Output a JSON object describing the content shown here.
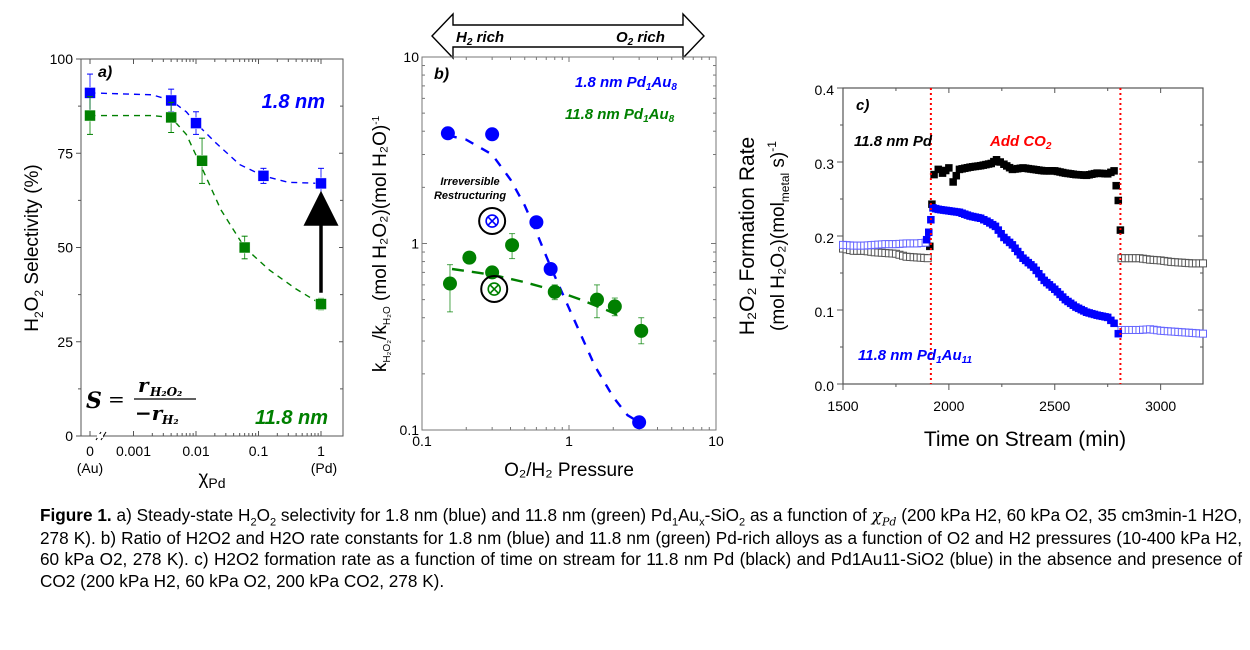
{
  "chart_data": [
    {
      "type": "scatter",
      "panel_label": "a)",
      "ylabel": "H2O2 Selectivity (%)",
      "xlabel": "χPd",
      "xscale": "log (broken axis; 0 placed left of break)",
      "ylim": [
        0,
        100
      ],
      "yticks": [
        0,
        25,
        50,
        75,
        100
      ],
      "xtick_labels": [
        "0",
        "0.001",
        "0.01",
        "0.1",
        "1"
      ],
      "xtick_sublabels": {
        "0": "(Au)",
        "1": "(Pd)"
      },
      "formula_label": "S = r_H2O2 / -r_H2",
      "series": [
        {
          "name": "1.8 nm",
          "color": "#0000ff",
          "marker": "square",
          "points": [
            {
              "x": 0,
              "y": 91,
              "err": 5
            },
            {
              "x": 0.004,
              "y": 89,
              "err": 3
            },
            {
              "x": 0.01,
              "y": 83,
              "err": 3
            },
            {
              "x": 0.12,
              "y": 69,
              "err": 2
            },
            {
              "x": 1,
              "y": 67,
              "err": 4
            }
          ],
          "fit": [
            [
              0,
              91
            ],
            [
              0.002,
              90.5
            ],
            [
              0.004,
              89
            ],
            [
              0.007,
              86
            ],
            [
              0.01,
              83
            ],
            [
              0.02,
              78
            ],
            [
              0.05,
              72
            ],
            [
              0.12,
              69
            ],
            [
              0.3,
              67.3
            ],
            [
              1,
              67
            ]
          ]
        },
        {
          "name": "11.8 nm",
          "color": "#008000",
          "marker": "square",
          "points": [
            {
              "x": 0,
              "y": 85,
              "err": 5
            },
            {
              "x": 0.004,
              "y": 84.5,
              "err": 4
            },
            {
              "x": 0.0125,
              "y": 73,
              "err": 6
            },
            {
              "x": 0.06,
              "y": 50,
              "err": 3
            },
            {
              "x": 1,
              "y": 35,
              "err": 1.5
            }
          ],
          "fit": [
            [
              0,
              85
            ],
            [
              0.002,
              85
            ],
            [
              0.004,
              84.5
            ],
            [
              0.007,
              80
            ],
            [
              0.0125,
              71
            ],
            [
              0.025,
              60
            ],
            [
              0.06,
              50
            ],
            [
              0.15,
              44
            ],
            [
              0.4,
              39
            ],
            [
              1,
              35
            ]
          ]
        }
      ],
      "annotations": [
        {
          "text": "1.8 nm",
          "color": "#0000ff"
        },
        {
          "text": "11.8 nm",
          "color": "#008000"
        },
        {
          "type": "arrow",
          "from": {
            "x": 1,
            "y": 38
          },
          "to": {
            "x": 1,
            "y": 62
          },
          "color": "#000000"
        }
      ]
    },
    {
      "type": "scatter",
      "panel_label": "b)",
      "ylabel": "kH2O2/kH2O (mol H2O2)(mol H2O)-1",
      "xlabel": "O2/H2 Pressure",
      "xscale": "log",
      "yscale": "log",
      "xlim": [
        0.1,
        10
      ],
      "ylim": [
        0.1,
        10
      ],
      "xtick_labels": [
        "0.1",
        "1",
        "10"
      ],
      "ytick_labels": [
        "0.1",
        "1",
        "10"
      ],
      "top_arrow": {
        "left": "H2 rich",
        "right": "O2 rich"
      },
      "series": [
        {
          "name": "1.8 nm Pd1Au8",
          "color": "#0000ff",
          "marker": "circle",
          "points": [
            {
              "x": 0.15,
              "y": 3.9
            },
            {
              "x": 0.3,
              "y": 3.85
            },
            {
              "x": 0.6,
              "y": 1.3
            },
            {
              "x": 0.75,
              "y": 0.73
            },
            {
              "x": 3.0,
              "y": 0.11
            }
          ],
          "fit": [
            [
              0.15,
              3.8
            ],
            [
              0.2,
              3.6
            ],
            [
              0.3,
              3.0
            ],
            [
              0.4,
              2.2
            ],
            [
              0.5,
              1.6
            ],
            [
              0.6,
              1.15
            ],
            [
              0.75,
              0.75
            ],
            [
              1,
              0.45
            ],
            [
              1.5,
              0.22
            ],
            [
              2,
              0.15
            ],
            [
              2.5,
              0.12
            ],
            [
              3,
              0.11
            ]
          ]
        },
        {
          "name": "11.8 nm Pd1Au8",
          "color": "#008000",
          "marker": "circle",
          "points": [
            {
              "x": 0.155,
              "y": 0.61,
              "err_lo": 0.18,
              "err_hi": 0.16
            },
            {
              "x": 0.21,
              "y": 0.84,
              "err_lo": 0.06,
              "err_hi": 0.05
            },
            {
              "x": 0.3,
              "y": 0.7,
              "err_lo": 0.05,
              "err_hi": 0.05
            },
            {
              "x": 0.41,
              "y": 0.98,
              "err_lo": 0.15,
              "err_hi": 0.15
            },
            {
              "x": 0.8,
              "y": 0.55,
              "err_lo": 0.05,
              "err_hi": 0.05
            },
            {
              "x": 1.55,
              "y": 0.5,
              "err_lo": 0.1,
              "err_hi": 0.1
            },
            {
              "x": 2.05,
              "y": 0.46,
              "err_lo": 0.05,
              "err_hi": 0.05
            },
            {
              "x": 3.1,
              "y": 0.34,
              "err_lo": 0.05,
              "err_hi": 0.06
            }
          ],
          "fit": [
            [
              0.16,
              0.73
            ],
            [
              0.3,
              0.68
            ],
            [
              0.5,
              0.62
            ],
            [
              0.8,
              0.56
            ],
            [
              1.2,
              0.5
            ],
            [
              1.8,
              0.44
            ],
            [
              2.2,
              0.41
            ]
          ]
        },
        {
          "name": "Irreversible Restructuring",
          "marker": "crossed-circle",
          "points": [
            {
              "x": 0.3,
              "y": 1.32,
              "color": "#0000ff"
            },
            {
              "x": 0.31,
              "y": 0.57,
              "color": "#008000"
            }
          ]
        }
      ],
      "annotations": [
        {
          "text": "1.8 nm Pd1Au8",
          "color": "#0000ff"
        },
        {
          "text": "11.8 nm Pd1Au8",
          "color": "#008000"
        },
        {
          "text": "Irreversible Restructuring",
          "color": "#000000"
        }
      ]
    },
    {
      "type": "scatter",
      "panel_label": "c)",
      "ylabel": "H2O2 Formation Rate (mol H2O2)(mol metal s)-1",
      "xlabel": "Time on Stream (min)",
      "xlim": [
        1500,
        3200
      ],
      "ylim": [
        0,
        0.4
      ],
      "xticks": [
        1500,
        2000,
        2500,
        3000
      ],
      "yticks": [
        0.0,
        0.1,
        0.2,
        0.3,
        0.4
      ],
      "vlines": [
        {
          "x": 1915,
          "color": "#ff0000"
        },
        {
          "x": 2810,
          "color": "#ff0000"
        }
      ],
      "series": [
        {
          "name": "11.8 nm Pd (no CO2)",
          "color": "#555555",
          "marker": "open-square",
          "segments": [
            [
              [
                1500,
                0.183
              ],
              [
                1550,
                0.18
              ],
              [
                1600,
                0.18
              ],
              [
                1650,
                0.178
              ],
              [
                1700,
                0.177
              ],
              [
                1750,
                0.176
              ],
              [
                1800,
                0.172
              ],
              [
                1850,
                0.171
              ],
              [
                1900,
                0.17
              ]
            ],
            [
              [
                2815,
                0.17
              ],
              [
                2900,
                0.17
              ],
              [
                2950,
                0.168
              ],
              [
                3000,
                0.167
              ],
              [
                3050,
                0.165
              ],
              [
                3100,
                0.164
              ],
              [
                3150,
                0.163
              ],
              [
                3200,
                0.163
              ]
            ]
          ]
        },
        {
          "name": "11.8 nm Pd (with CO2)",
          "color": "#000000",
          "marker": "filled-square",
          "segments": [
            [
              [
                1910,
                0.186
              ],
              [
                1920,
                0.243
              ],
              [
                1930,
                0.283
              ],
              [
                1950,
                0.29
              ],
              [
                1970,
                0.285
              ],
              [
                2000,
                0.292
              ],
              [
                2020,
                0.273
              ],
              [
                2050,
                0.29
              ],
              [
                2100,
                0.293
              ],
              [
                2150,
                0.295
              ],
              [
                2200,
                0.298
              ],
              [
                2225,
                0.303
              ],
              [
                2260,
                0.297
              ],
              [
                2300,
                0.29
              ],
              [
                2350,
                0.292
              ],
              [
                2400,
                0.29
              ],
              [
                2450,
                0.288
              ],
              [
                2500,
                0.288
              ],
              [
                2550,
                0.285
              ],
              [
                2600,
                0.283
              ],
              [
                2650,
                0.282
              ],
              [
                2700,
                0.285
              ],
              [
                2750,
                0.284
              ],
              [
                2780,
                0.288
              ],
              [
                2790,
                0.268
              ],
              [
                2800,
                0.248
              ],
              [
                2810,
                0.208
              ]
            ]
          ]
        },
        {
          "name": "11.8 nm Pd1Au11 (no CO2)",
          "color": "#6666ff",
          "marker": "open-square",
          "segments": [
            [
              [
                1500,
                0.188
              ],
              [
                1550,
                0.187
              ],
              [
                1600,
                0.187
              ],
              [
                1650,
                0.188
              ],
              [
                1700,
                0.189
              ],
              [
                1750,
                0.189
              ],
              [
                1800,
                0.19
              ],
              [
                1850,
                0.19
              ],
              [
                1890,
                0.191
              ]
            ],
            [
              [
                2815,
                0.073
              ],
              [
                2900,
                0.073
              ],
              [
                2950,
                0.074
              ],
              [
                3000,
                0.072
              ],
              [
                3050,
                0.071
              ],
              [
                3100,
                0.07
              ],
              [
                3150,
                0.069
              ],
              [
                3200,
                0.068
              ]
            ]
          ]
        },
        {
          "name": "11.8 nm Pd1Au11 (with CO2)",
          "color": "#0000ff",
          "marker": "filled-square",
          "segments": [
            [
              [
                1895,
                0.195
              ],
              [
                1905,
                0.205
              ],
              [
                1915,
                0.222
              ],
              [
                1925,
                0.238
              ],
              [
                1950,
                0.236
              ],
              [
                2000,
                0.234
              ],
              [
                2050,
                0.232
              ],
              [
                2100,
                0.227
              ],
              [
                2150,
                0.224
              ],
              [
                2180,
                0.22
              ],
              [
                2220,
                0.213
              ],
              [
                2260,
                0.198
              ],
              [
                2300,
                0.188
              ],
              [
                2350,
                0.17
              ],
              [
                2400,
                0.158
              ],
              [
                2450,
                0.14
              ],
              [
                2500,
                0.128
              ],
              [
                2550,
                0.114
              ],
              [
                2600,
                0.104
              ],
              [
                2650,
                0.097
              ],
              [
                2700,
                0.093
              ],
              [
                2750,
                0.09
              ],
              [
                2780,
                0.082
              ],
              [
                2800,
                0.068
              ]
            ]
          ]
        }
      ],
      "annotations": [
        {
          "text": "11.8 nm Pd",
          "color": "#000000"
        },
        {
          "text": "Add CO2",
          "color": "#ff0000"
        },
        {
          "text": "11.8 nm Pd1Au11",
          "color": "#0000ff"
        }
      ]
    }
  ],
  "labels": {
    "a_panel": "a)",
    "a_ytick": [
      "0",
      "25",
      "50",
      "75",
      "100"
    ],
    "a_xtick": [
      "0",
      "0.001",
      "0.01",
      "0.1",
      "1"
    ],
    "a_au": "(Au)",
    "a_pd": "(Pd)",
    "a_xlabel_chi": "χ",
    "a_xlabel_sub": "Pd",
    "a_ylabel_pre": "H",
    "a_ylabel_sub1": "2",
    "a_ylabel_mid": "O",
    "a_ylabel_sub2": "2",
    "a_ylabel_post": " Selectivity (%)",
    "a_lbl_blue": "1.8 nm",
    "a_lbl_green": "11.8 nm",
    "a_formula_S": "S",
    "a_formula_eq": "=",
    "a_formula_num": "r",
    "a_formula_num_sub": "H₂O₂",
    "a_formula_den": "−r",
    "a_formula_den_sub": "H₂",
    "b_panel": "b)",
    "b_arrow_left": "H",
    "b_arrow_left_sub": "2",
    "b_arrow_left_post": " rich",
    "b_arrow_right": "O",
    "b_arrow_right_sub": "2",
    "b_arrow_right_post": " rich",
    "b_xtick": [
      "0.1",
      "1",
      "10"
    ],
    "b_ytick": [
      "0.1",
      "1",
      "10"
    ],
    "b_xlabel": "O₂/H₂ Pressure",
    "b_ylabel": "k",
    "b_ylabel_sub1": "H₂O₂",
    "b_ylabel_mid": "/k",
    "b_ylabel_sub2": "H₂O",
    "b_ylabel_post": " (mol H₂O₂)(mol H₂O)",
    "b_ylabel_sup": "-1",
    "b_lbl_blue": "1.8 nm Pd",
    "b_lbl_blue_s1": "1",
    "b_lbl_blue_au": "Au",
    "b_lbl_blue_s2": "8",
    "b_lbl_green": "11.8 nm Pd",
    "b_lbl_green_s1": "1",
    "b_lbl_green_au": "Au",
    "b_lbl_green_s2": "8",
    "b_irr1": "Irreversible",
    "b_irr2": "Restructuring",
    "c_panel": "c)",
    "c_xtick": [
      "1500",
      "2000",
      "2500",
      "3000"
    ],
    "c_ytick": [
      "0.0",
      "0.1",
      "0.2",
      "0.3",
      "0.4"
    ],
    "c_xlabel": "Time on Stream (min)",
    "c_ylabel1": "H₂O₂ Formation Rate",
    "c_ylabel2a": "(mol H₂O₂)(mol",
    "c_ylabel2sub": "metal",
    "c_ylabel2b": " s)",
    "c_ylabel2sup": "-1",
    "c_lbl_pd": "11.8 nm Pd",
    "c_lbl_co2": "Add CO",
    "c_lbl_co2_sub": "2",
    "c_lbl_pdau": "11.8 nm Pd",
    "c_lbl_pdau_s1": "1",
    "c_lbl_pdau_au": "Au",
    "c_lbl_pdau_s2": "11"
  },
  "caption": {
    "fig": "Figure 1.",
    "parts": [
      " a) Steady-state H",
      "2",
      "O",
      "2",
      " selectivity for 1.8 nm (blue) and 11.8 nm (green) Pd",
      "1",
      "Au",
      "x",
      "-SiO",
      "2",
      " as a function of ",
      "χ",
      "Pd",
      " (200 kPa H",
      "2",
      ", 60 kPa O",
      "2",
      ", 35 cm",
      "3",
      "min",
      "-1",
      " H",
      "2",
      "O, 278 K). b) Ratio of H",
      "2",
      "O",
      "2",
      " and H",
      "2",
      "O rate constants for 1.8 nm (blue) and 11.8 nm (green) Pd-rich alloys as a function of O",
      "2",
      " and H",
      "2",
      " pressures (10-400 kPa H",
      "2",
      ", 60 kPa O",
      "2",
      ", 278 K). c) H",
      "2",
      "O",
      "2",
      " formation rate as a function of time on stream for 11.8 nm Pd (black) and Pd",
      "1",
      "Au",
      "11",
      "-SiO",
      "2",
      " (blue) in the absence and presence of CO",
      "2",
      " (200 kPa H",
      "2",
      ", 60 kPa O",
      "2",
      ", 200 kPa CO",
      "2",
      ", 278 K)."
    ]
  }
}
